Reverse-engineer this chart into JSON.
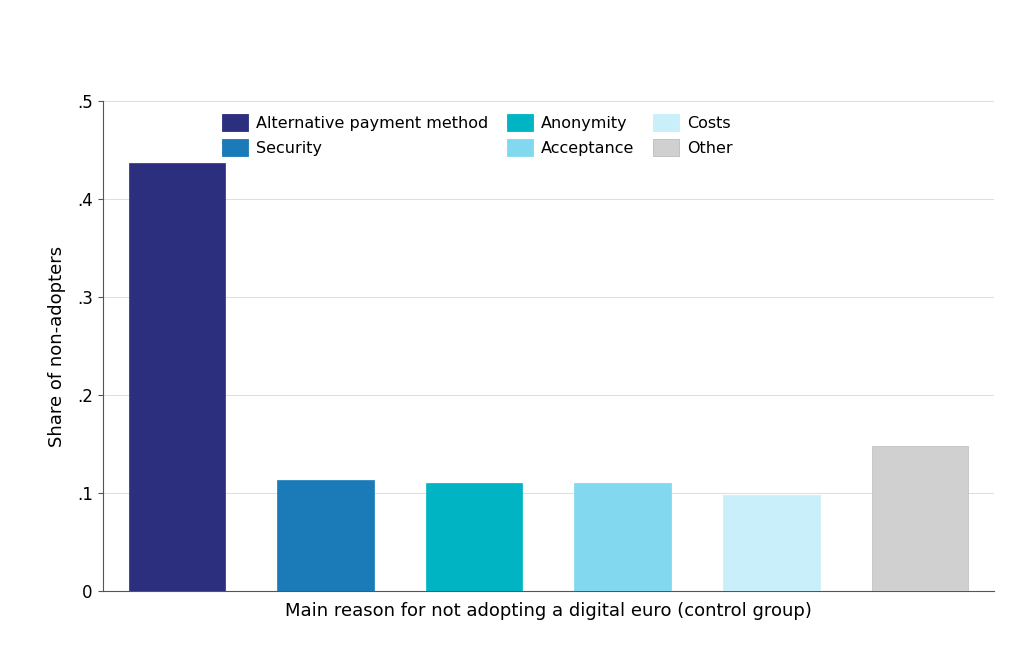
{
  "values": [
    0.437,
    0.113,
    0.11,
    0.11,
    0.098,
    0.148
  ],
  "bar_colors": [
    "#2B2F7E",
    "#1B7AB8",
    "#00B4C4",
    "#82D8EE",
    "#C8EFFA",
    "#D0D0D0"
  ],
  "bar_edge_colors": [
    "#2B2F7E",
    "#1B7AB8",
    "#00B4C4",
    "#82D8EE",
    "#C8EFFA",
    "#BBBBBB"
  ],
  "legend_row1_labels": [
    "Alternative payment method",
    "Security",
    "Anonymity"
  ],
  "legend_row2_labels": [
    "Acceptance",
    "Costs",
    "Other"
  ],
  "legend_row1_colors": [
    "#2B2F7E",
    "#1B7AB8",
    "#00B4C4"
  ],
  "legend_row2_colors": [
    "#82D8EE",
    "#C8EFFA",
    "#D0D0D0"
  ],
  "legend_row1_edge": [
    "#2B2F7E",
    "#1B7AB8",
    "#00B4C4"
  ],
  "legend_row2_edge": [
    "#82D8EE",
    "#C8EFFA",
    "#BBBBBB"
  ],
  "xlabel": "Main reason for not adopting a digital euro (control group)",
  "ylabel": "Share of non-adopters",
  "ylim": [
    0,
    0.5
  ],
  "yticks": [
    0,
    0.1,
    0.2,
    0.3,
    0.4,
    0.5
  ],
  "ytick_labels": [
    "0",
    ".1",
    ".2",
    ".3",
    ".4",
    ".5"
  ],
  "xlabel_fontsize": 13,
  "ylabel_fontsize": 13,
  "tick_fontsize": 12,
  "legend_fontsize": 11.5,
  "background_color": "#FFFFFF"
}
